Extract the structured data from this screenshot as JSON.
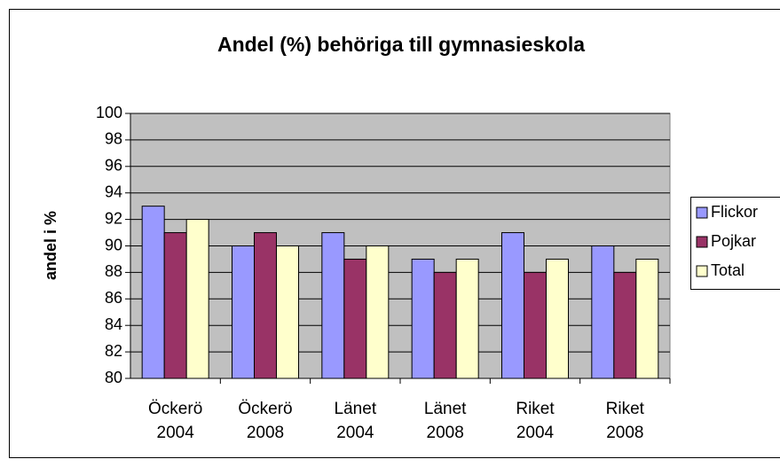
{
  "chart_data": {
    "type": "bar",
    "title": "Andel (%) behöriga till gymnasieskola",
    "y_label": "andel i %",
    "categories": [
      "Öckerö 2004",
      "Öckerö 2008",
      "Länet 2004",
      "Länet 2008",
      "Riket 2004",
      "Riket 2008"
    ],
    "series": [
      {
        "name": "Flickor",
        "color": "#9999ff",
        "values": [
          93,
          90,
          91,
          89,
          91,
          90
        ]
      },
      {
        "name": "Pojkar",
        "color": "#993366",
        "values": [
          91,
          91,
          89,
          88,
          88,
          88
        ]
      },
      {
        "name": "Total",
        "color": "#ffffcc",
        "values": [
          92,
          90,
          90,
          89,
          89,
          89
        ]
      }
    ],
    "ylim": [
      80,
      100
    ],
    "yticks": [
      80,
      82,
      84,
      86,
      88,
      90,
      92,
      94,
      96,
      98,
      100
    ],
    "grid": true,
    "plot_background": "#c0c0c0",
    "legend": "right"
  }
}
